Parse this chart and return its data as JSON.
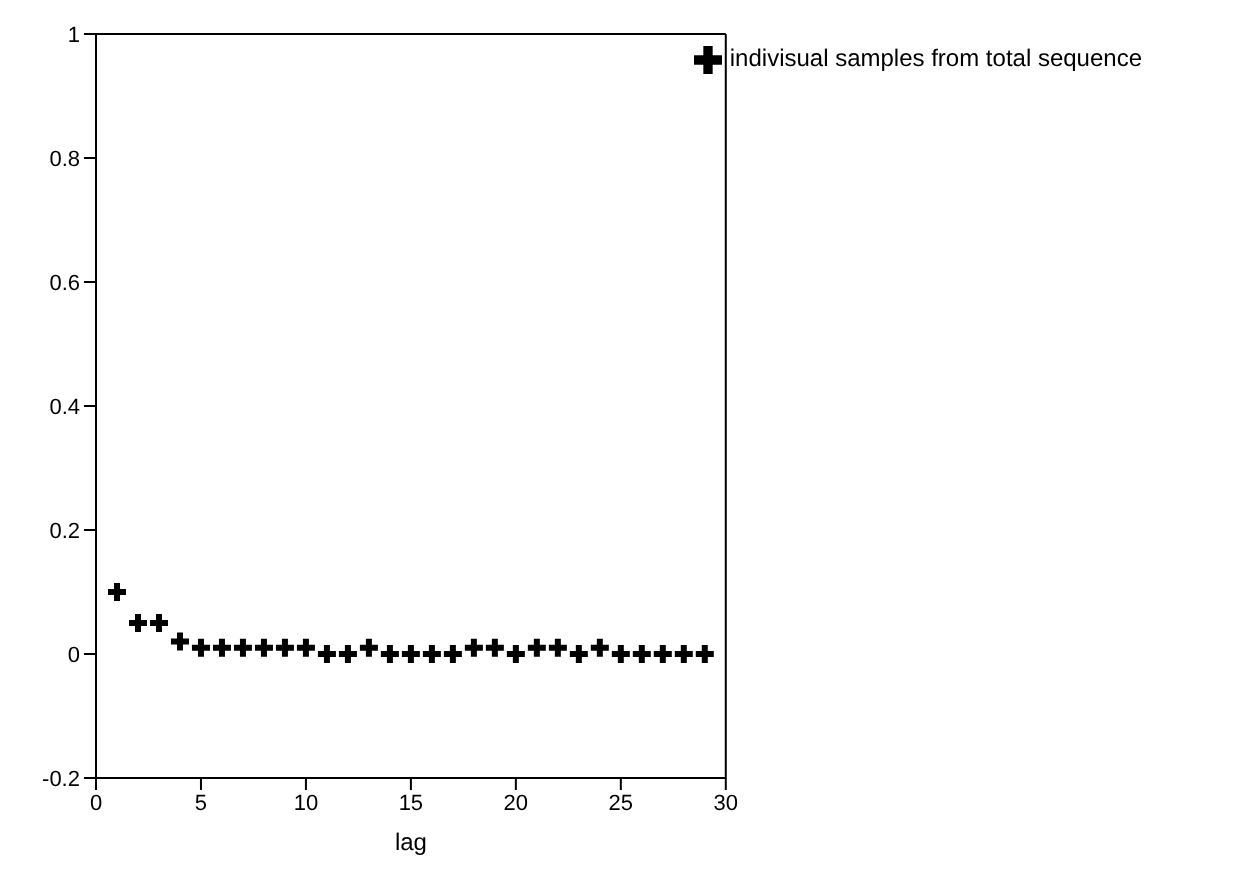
{
  "chart_data": {
    "type": "scatter",
    "xlabel": "lag",
    "x": [
      1,
      2,
      3,
      4,
      5,
      6,
      7,
      8,
      9,
      10,
      11,
      12,
      13,
      14,
      15,
      16,
      17,
      18,
      19,
      20,
      21,
      22,
      23,
      24,
      25,
      26,
      27,
      28,
      29
    ],
    "series": [
      {
        "name": "indivisual samples from total sequence",
        "color": "#000000",
        "values": [
          0.1,
          0.05,
          0.05,
          0.02,
          0.01,
          0.01,
          0.01,
          0.01,
          0.01,
          0.01,
          0.0,
          0.0,
          0.01,
          0.0,
          0.0,
          0.0,
          0.0,
          0.01,
          0.01,
          0.0,
          0.01,
          0.01,
          0.0,
          0.01,
          0.0,
          0.0,
          0.0,
          0.0,
          0.0
        ]
      }
    ],
    "xlim": [
      0,
      30
    ],
    "xticks": [
      0,
      5,
      10,
      15,
      20,
      25,
      30
    ],
    "ylim": [
      -0.2,
      1
    ],
    "yticks": [
      -0.2,
      0,
      0.2,
      0.4,
      0.6,
      0.8,
      1
    ],
    "marker": "cross",
    "legend": "top right",
    "grid": false
  }
}
